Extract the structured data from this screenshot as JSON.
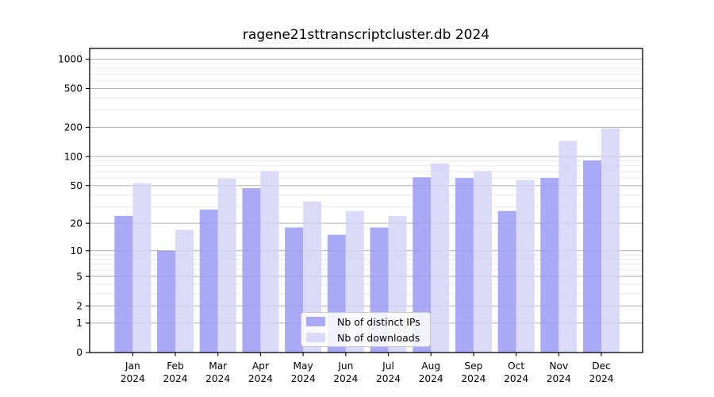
{
  "page": {
    "background": "#ffffff"
  },
  "chart_data": {
    "type": "bar",
    "title": "ragene21sttranscriptcluster.db 2024",
    "x": {
      "months": [
        "Jan",
        "Feb",
        "Mar",
        "Apr",
        "May",
        "Jun",
        "Jul",
        "Aug",
        "Sep",
        "Oct",
        "Nov",
        "Dec"
      ],
      "year": "2024"
    },
    "categories": [
      "Jan 2024",
      "Feb 2024",
      "Mar 2024",
      "Apr 2024",
      "May 2024",
      "Jun 2024",
      "Jul 2024",
      "Aug 2024",
      "Sep 2024",
      "Oct 2024",
      "Nov 2024",
      "Dec 2024"
    ],
    "series": [
      {
        "key": "distinct-ips",
        "name": "Nb of distinct IPs",
        "color": "#9a9af3",
        "values": [
          24,
          10,
          28,
          47,
          18,
          15,
          18,
          61,
          60,
          27,
          60,
          91
        ]
      },
      {
        "key": "downloads",
        "name": "Nb of downloads",
        "color": "#d4d4f8",
        "values": [
          53,
          17,
          59,
          71,
          34,
          27,
          24,
          85,
          71,
          57,
          145,
          195
        ]
      }
    ],
    "bar_opacity": 0.85,
    "yscale": "log1p",
    "y_ticks": [
      0,
      1,
      2,
      5,
      10,
      20,
      50,
      100,
      200,
      500,
      1000
    ],
    "y_minor_ticks": [
      3,
      4,
      6,
      7,
      8,
      9,
      30,
      40,
      60,
      70,
      80,
      90,
      300,
      400,
      600,
      700,
      800,
      900
    ],
    "ylim": [
      0,
      1287
    ],
    "grid": true,
    "legend": {
      "position": "lower-center"
    },
    "colors": {
      "major_grid": "#b0b0b0",
      "minor_grid": "#e9e9e9",
      "axis": "#000000",
      "text": "#000000"
    }
  }
}
